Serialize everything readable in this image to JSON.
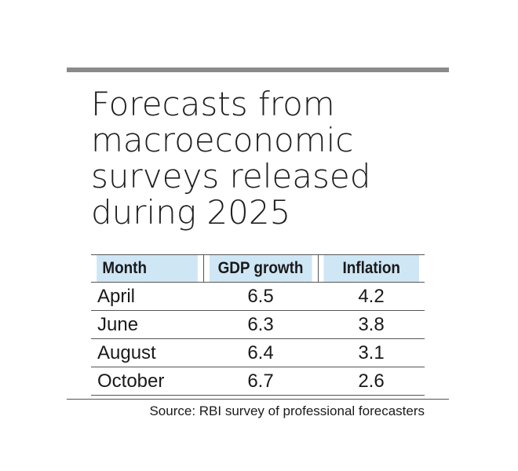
{
  "chart_data": {
    "type": "table",
    "title_lines": [
      "Forecasts from",
      "macroeconomic",
      "surveys released",
      "during 2025"
    ],
    "columns": [
      "Month",
      "GDP growth",
      "Inflation"
    ],
    "rows": [
      {
        "month": "April",
        "gdp_growth": "6.5",
        "inflation": "4.2"
      },
      {
        "month": "June",
        "gdp_growth": "6.3",
        "inflation": "3.8"
      },
      {
        "month": "August",
        "gdp_growth": "6.4",
        "inflation": "3.1"
      },
      {
        "month": "October",
        "gdp_growth": "6.7",
        "inflation": "2.6"
      }
    ],
    "source": "Source: RBI survey of professional forecasters",
    "colors": {
      "header_background": "#cfe6f5",
      "rule": "#8a8a8a",
      "text": "#1a1a1a"
    }
  }
}
